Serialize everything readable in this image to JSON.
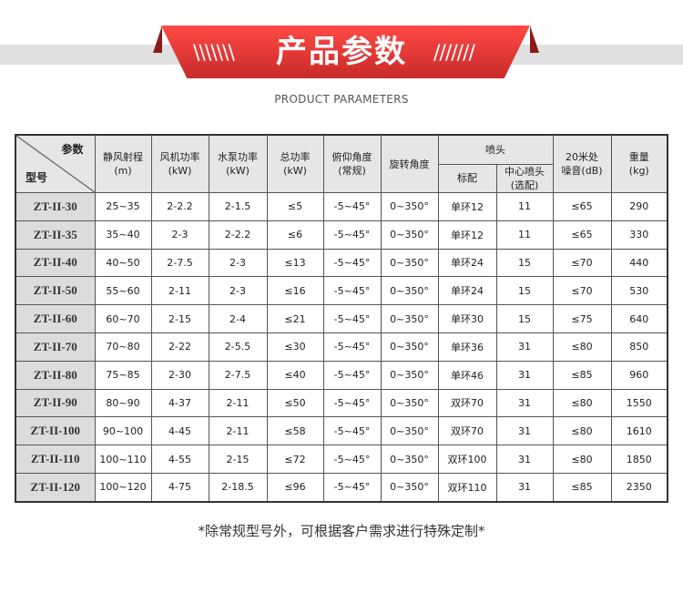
{
  "banner": {
    "title": "产品参数",
    "subtitle": "PRODUCT PARAMETERS"
  },
  "table": {
    "corner": {
      "top": "参数",
      "bottom": "型号"
    },
    "headers": {
      "range": [
        "静风射程",
        "(m)"
      ],
      "fan": [
        "风机功率",
        "(kW)"
      ],
      "pump": [
        "水泵功率",
        "(kW)"
      ],
      "total": [
        "总功率",
        "(kW)"
      ],
      "pitch": [
        "俯仰角度",
        "(常规)"
      ],
      "rotation": "旋转角度",
      "nozzle": "喷头",
      "nozzle_std": "标配",
      "nozzle_center": [
        "中心喷头",
        "(选配)"
      ],
      "noise": [
        "20米处",
        "噪音(dB)"
      ],
      "weight": [
        "重量",
        "(kg)"
      ]
    },
    "rows": [
      [
        "ZT-II-30",
        "25~35",
        "2-2.2",
        "2-1.5",
        "≤5",
        "-5~45°",
        "0~350°",
        "单环12",
        "11",
        "≤65",
        "290"
      ],
      [
        "ZT-II-35",
        "35~40",
        "2-3",
        "2-2.2",
        "≤6",
        "-5~45°",
        "0~350°",
        "单环12",
        "11",
        "≤65",
        "330"
      ],
      [
        "ZT-II-40",
        "40~50",
        "2-7.5",
        "2-3",
        "≤13",
        "-5~45°",
        "0~350°",
        "单环24",
        "15",
        "≤70",
        "440"
      ],
      [
        "ZT-II-50",
        "55~60",
        "2-11",
        "2-3",
        "≤16",
        "-5~45°",
        "0~350°",
        "单环24",
        "15",
        "≤70",
        "530"
      ],
      [
        "ZT-II-60",
        "60~70",
        "2-15",
        "2-4",
        "≤21",
        "-5~45°",
        "0~350°",
        "单环30",
        "15",
        "≤75",
        "640"
      ],
      [
        "ZT-II-70",
        "70~80",
        "2-22",
        "2-5.5",
        "≤30",
        "-5~45°",
        "0~350°",
        "单环36",
        "31",
        "≤80",
        "850"
      ],
      [
        "ZT-II-80",
        "75~85",
        "2-30",
        "2-7.5",
        "≤40",
        "-5~45°",
        "0~350°",
        "单环46",
        "31",
        "≤85",
        "960"
      ],
      [
        "ZT-II-90",
        "80~90",
        "4-37",
        "2-11",
        "≤50",
        "-5~45°",
        "0~350°",
        "双环70",
        "31",
        "≤80",
        "1550"
      ],
      [
        "ZT-II-100",
        "90~100",
        "4-45",
        "2-11",
        "≤58",
        "-5~45°",
        "0~350°",
        "双环70",
        "31",
        "≤80",
        "1610"
      ],
      [
        "ZT-II-110",
        "100~110",
        "4-55",
        "2-15",
        "≤72",
        "-5~45°",
        "0~350°",
        "双环100",
        "31",
        "≤80",
        "1850"
      ],
      [
        "ZT-II-120",
        "100~120",
        "4-75",
        "2-18.5",
        "≤96",
        "-5~45°",
        "0~350°",
        "双环110",
        "31",
        "≤85",
        "2350"
      ]
    ]
  },
  "note": "*除常规型号外，可根据客户需求进行特殊定制*"
}
